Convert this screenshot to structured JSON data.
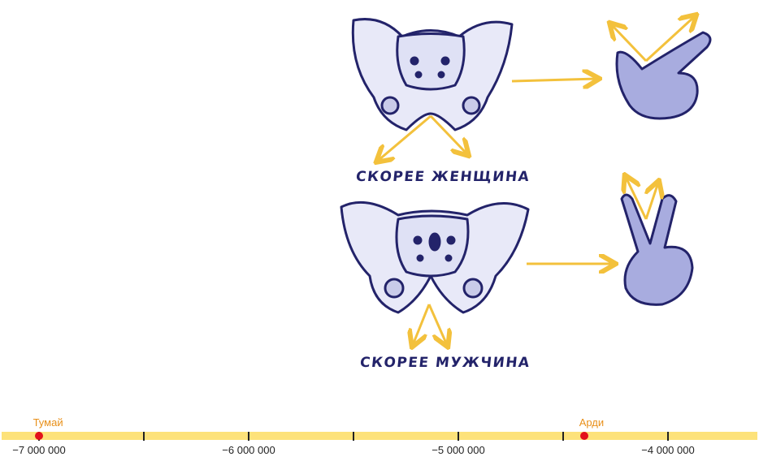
{
  "illustration": {
    "female_caption": "СКОРЕЕ ЖЕНЩИНА",
    "male_caption": "СКОРЕЕ МУЖЧИНА",
    "colors": {
      "ink": "#23236a",
      "bone": "#e8e9f8",
      "hand": "#a8acdf",
      "arrow": "#f3c13c"
    },
    "icons": [
      "female-pelvis-icon",
      "male-pelvis-icon",
      "l-hand-gesture-icon",
      "v-hand-gesture-icon"
    ]
  },
  "timeline": {
    "colors": {
      "bar": "#fde27a",
      "event": "#e3121b",
      "event_label": "#e8901a"
    },
    "range": [
      -7250000,
      -3800000
    ],
    "ticks": [
      -7000000,
      -6500000,
      -6000000,
      -5500000,
      -5000000,
      -4500000,
      -4000000
    ],
    "tick_labels": [
      {
        "value": -7000000,
        "label": "−7 000 000"
      },
      {
        "value": -6000000,
        "label": "−6 000 000"
      },
      {
        "value": -5000000,
        "label": "−5 000 000"
      },
      {
        "value": -4000000,
        "label": "−4 000 000"
      }
    ],
    "events": [
      {
        "name": "Тумай",
        "value": -7000000
      },
      {
        "name": "Арди",
        "value": -4400000
      }
    ]
  }
}
